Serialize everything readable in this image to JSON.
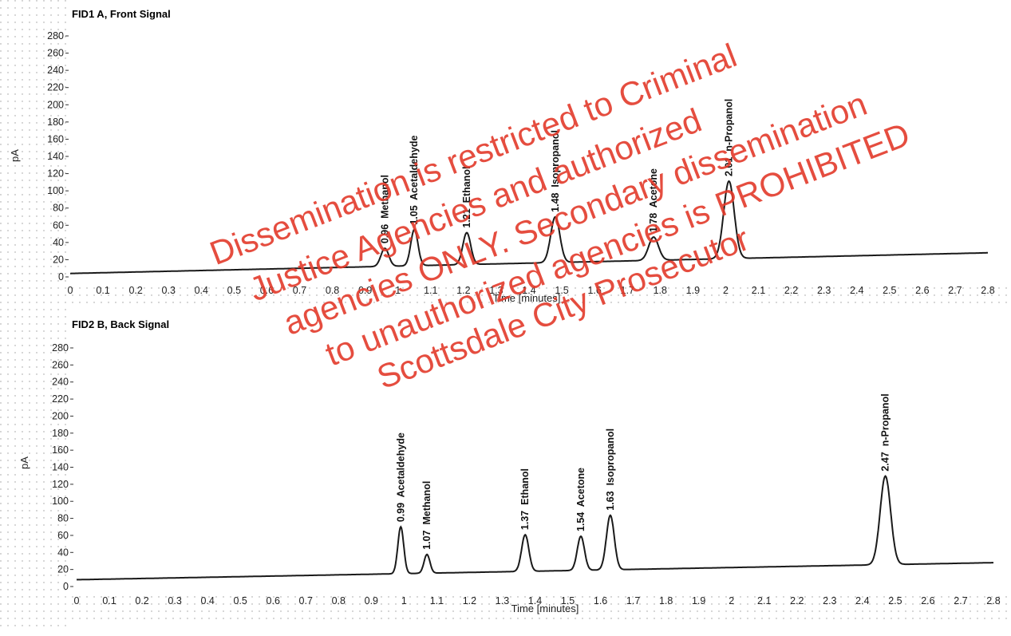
{
  "chart_data": [
    {
      "type": "line",
      "title": "FID1 A, Front Signal",
      "xlabel": "Time [minutes]",
      "ylabel": "pA",
      "xlim": [
        0,
        2.8
      ],
      "ylim": [
        0,
        280
      ],
      "xticks": [
        "0",
        "0.1",
        "0.2",
        "0.3",
        "0.4",
        "0.5",
        "0.6",
        "0.7",
        "0.8",
        "0.9",
        "1",
        "1.1",
        "1.2",
        "1.3",
        "1.4",
        "1.5",
        "1.6",
        "1.7",
        "1.8",
        "1.9",
        "2",
        "2.1",
        "2.2",
        "2.3",
        "2.4",
        "2.5",
        "2.6",
        "2.7",
        "2.8"
      ],
      "yticks": [
        "0",
        "20",
        "40",
        "60",
        "80",
        "100",
        "120",
        "140",
        "160",
        "180",
        "200",
        "220",
        "240",
        "260",
        "280"
      ],
      "baseline": [
        4,
        28
      ],
      "peaks": [
        {
          "label": "0.96  Methanol",
          "rt": 0.96,
          "height": 21,
          "width": 0.012
        },
        {
          "label": "1.05  Acetaldehyde",
          "rt": 1.05,
          "height": 42,
          "width": 0.011
        },
        {
          "label": "1.21  Ethanol",
          "rt": 1.21,
          "height": 37,
          "width": 0.012
        },
        {
          "label": "1.48  Isopropanol",
          "rt": 1.48,
          "height": 53,
          "width": 0.014
        },
        {
          "label": "1.78  Acetone",
          "rt": 1.78,
          "height": 27,
          "width": 0.015
        },
        {
          "label": "2.01  n-Propanol",
          "rt": 2.01,
          "height": 90,
          "width": 0.016
        }
      ]
    },
    {
      "type": "line",
      "title": "FID2 B, Back Signal",
      "xlabel": "Time [minutes]",
      "ylabel": "pA",
      "xlim": [
        0,
        2.8
      ],
      "ylim": [
        0,
        280
      ],
      "xticks": [
        "0",
        "0.1",
        "0.2",
        "0.3",
        "0.4",
        "0.5",
        "0.6",
        "0.7",
        "0.8",
        "0.9",
        "1",
        "1.1",
        "1.2",
        "1.3",
        "1.4",
        "1.5",
        "1.6",
        "1.7",
        "1.8",
        "1.9",
        "2",
        "2.1",
        "2.2",
        "2.3",
        "2.4",
        "2.5",
        "2.6",
        "2.7",
        "2.8"
      ],
      "yticks": [
        "0",
        "20",
        "40",
        "60",
        "80",
        "100",
        "120",
        "140",
        "160",
        "180",
        "200",
        "220",
        "240",
        "260",
        "280"
      ],
      "baseline": [
        8,
        28
      ],
      "peaks": [
        {
          "label": "0.99  Acetaldehyde",
          "rt": 0.99,
          "height": 55,
          "width": 0.009
        },
        {
          "label": "1.07  Methanol",
          "rt": 1.07,
          "height": 22,
          "width": 0.009
        },
        {
          "label": "1.37  Ethanol",
          "rt": 1.37,
          "height": 43,
          "width": 0.011
        },
        {
          "label": "1.54  Acetone",
          "rt": 1.54,
          "height": 40,
          "width": 0.011
        },
        {
          "label": "1.63  Isopropanol",
          "rt": 1.63,
          "height": 64,
          "width": 0.012
        },
        {
          "label": "2.47  n-Propanol",
          "rt": 2.47,
          "height": 104,
          "width": 0.016
        }
      ]
    }
  ],
  "watermark": {
    "lines": [
      "Dissemination is restricted to Criminal",
      "Justice Agencies and authorized",
      "agencies ONLY. Secondary dissemination",
      "to unauthorized agencies is PROHIBITED",
      "Scottsdale City Prosecutor"
    ],
    "color": "#e23a2a"
  }
}
